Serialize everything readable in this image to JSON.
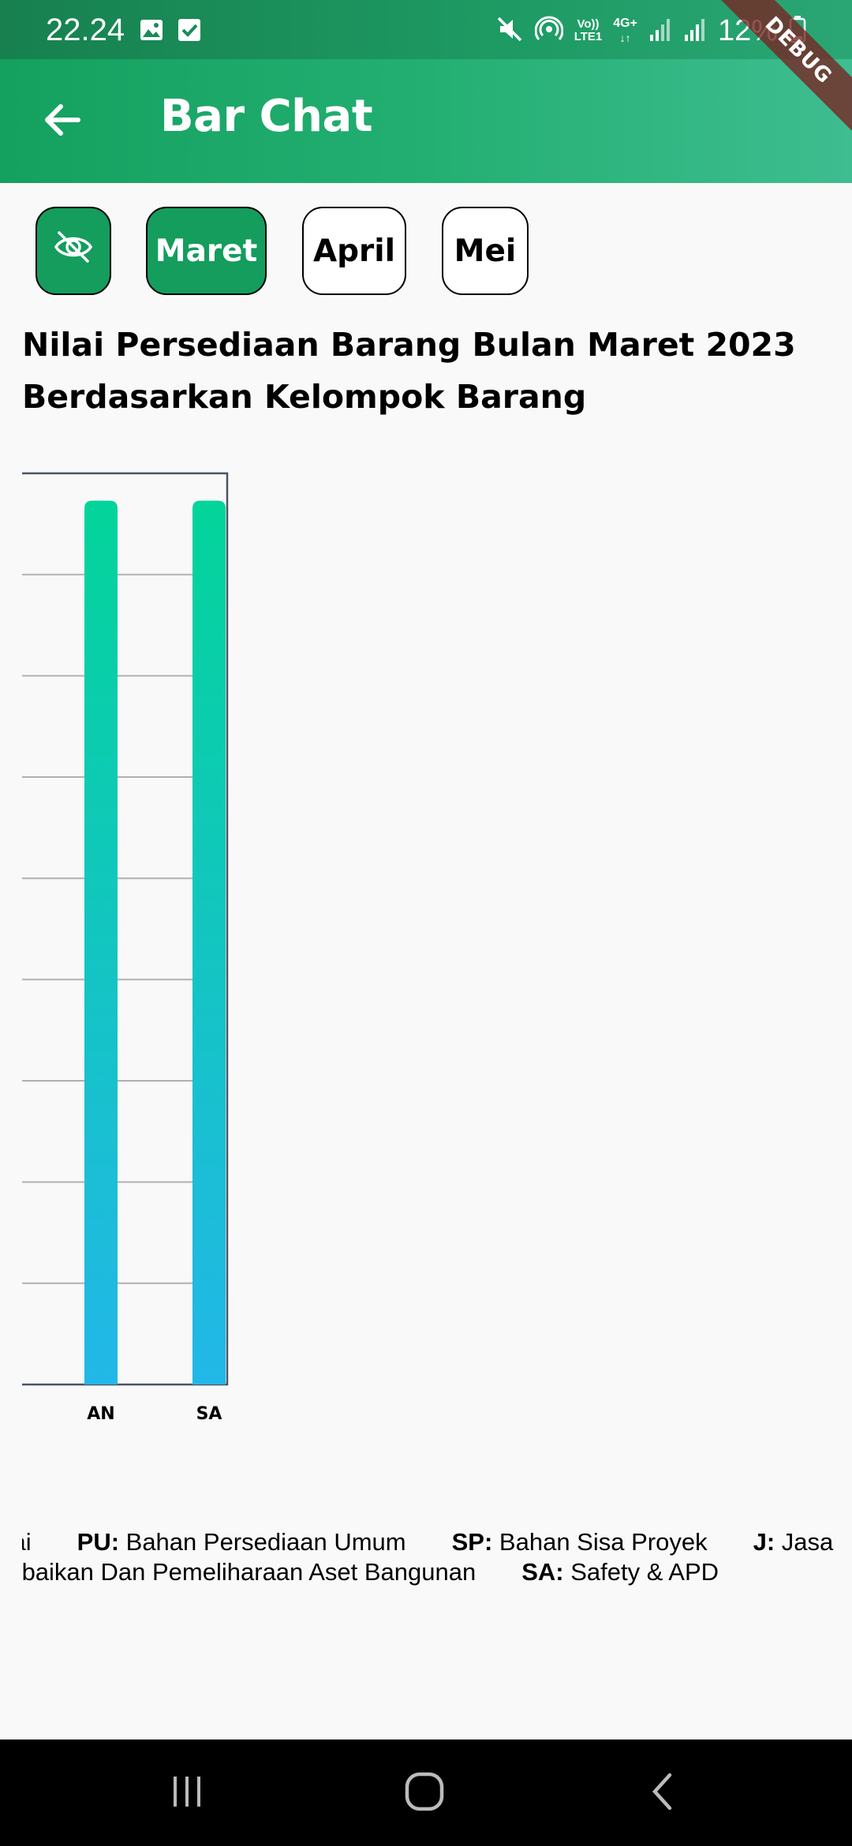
{
  "status_bar": {
    "time": "22.24",
    "battery_percent": "12%",
    "left_icons": [
      "image-icon",
      "checkbox-icon"
    ],
    "right_icons": [
      "mute-icon",
      "hotspot-icon",
      "volte-icon",
      "4g-icon",
      "signal-icon",
      "signal-icon",
      "battery-icon"
    ],
    "network_label_top": "Vo))",
    "network_label_bottom": "LTE1",
    "data_label": "4G+"
  },
  "app_bar": {
    "title": "Bar Chat",
    "back_icon": "arrow-left-icon",
    "debug_banner": "DEBUG"
  },
  "filters": {
    "hide_icon": "eye-off-icon",
    "months": [
      {
        "label": "Maret",
        "selected": true
      },
      {
        "label": "April",
        "selected": false
      },
      {
        "label": "Mei",
        "selected": false
      }
    ]
  },
  "chart_title_line1": "Nilai Persediaan Barang Bulan Maret 2023",
  "chart_title_line2": "Berdasarkan Kelompok Barang",
  "chart_data": {
    "type": "bar",
    "title": "Nilai Persediaan Barang Bulan Maret 2023 Berdasarkan Kelompok Barang",
    "categories": [
      "AN",
      "SA"
    ],
    "values": [
      0.97,
      0.97
    ],
    "ylim": [
      0,
      1
    ],
    "grid": true,
    "bar_gradient": [
      "#03d49a",
      "#22b7e8"
    ]
  },
  "legend": {
    "row1": [
      {
        "code": "",
        "text": "kai"
      },
      {
        "code": "PU:",
        "text": "Bahan Persediaan Umum"
      },
      {
        "code": "SP:",
        "text": "Bahan Sisa Proyek"
      },
      {
        "code": "J:",
        "text": "Jasa"
      }
    ],
    "row2": [
      {
        "code": "",
        "text": "erbaikan Dan Pemeliharaan Aset Bangunan"
      },
      {
        "code": "SA:",
        "text": "Safety & APD"
      }
    ]
  },
  "nav_bar": {
    "buttons": [
      "recent-apps-icon",
      "home-icon",
      "back-icon"
    ]
  },
  "colors": {
    "primary": "#149d5d",
    "background": "#f9f9f9"
  }
}
